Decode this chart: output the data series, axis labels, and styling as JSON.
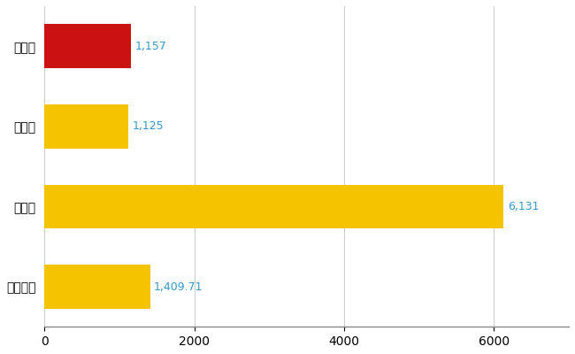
{
  "categories": [
    "大田市",
    "県平均",
    "県最大",
    "全国平均"
  ],
  "values": [
    1157,
    1125,
    6131,
    1409.71
  ],
  "bar_colors": [
    "#cc1111",
    "#f5c400",
    "#f5c400",
    "#f5c400"
  ],
  "value_labels": [
    "1,157",
    "1,125",
    "6,131",
    "1,409.71"
  ],
  "xlim": [
    0,
    7000
  ],
  "xticks": [
    0,
    2000,
    4000,
    6000
  ],
  "background_color": "#ffffff",
  "bar_height": 0.55,
  "label_color": "#3399cc",
  "grid_color": "#cccccc",
  "label_fontsize": 9,
  "tick_fontsize": 10,
  "ytick_fontsize": 10,
  "figsize": [
    6.5,
    4.0
  ],
  "dpi": 100
}
